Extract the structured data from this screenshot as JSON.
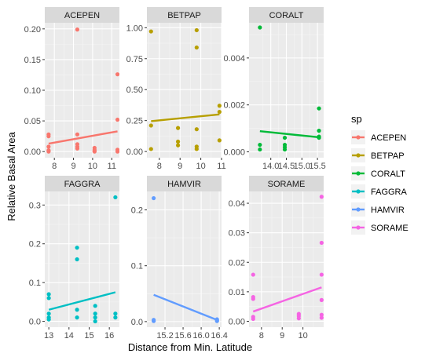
{
  "chart_data": {
    "type": "scatter",
    "xlabel": "Distance from Min. Latitude",
    "ylabel": "Relative Basal Area",
    "legend": {
      "title": "sp",
      "placement": "right",
      "entries": [
        {
          "name": "ACEPEN",
          "color": "#F8766D"
        },
        {
          "name": "BETPAP",
          "color": "#B79F00"
        },
        {
          "name": "CORALT",
          "color": "#00BA38"
        },
        {
          "name": "FAGGRA",
          "color": "#00BFC4"
        },
        {
          "name": "HAMVIR",
          "color": "#619CFF"
        },
        {
          "name": "SORAME",
          "color": "#F564E3"
        }
      ]
    },
    "panels": [
      {
        "label": "ACEPEN",
        "color": "#F8766D",
        "xlim": [
          7.5,
          11.4
        ],
        "ylim": [
          -0.01,
          0.21
        ],
        "xticks": [
          8,
          9,
          10,
          11
        ],
        "xticklabels": [
          "8",
          "9",
          "10",
          "11"
        ],
        "yticks": [
          0,
          0.05,
          0.1,
          0.15,
          0.2
        ],
        "yticklabels": [
          "0.00",
          "0.05",
          "0.10",
          "0.15",
          "0.20"
        ],
        "points": [
          [
            7.7,
            0.028
          ],
          [
            7.7,
            0.025
          ],
          [
            7.7,
            0.008
          ],
          [
            7.7,
            0.002
          ],
          [
            7.7,
            0.0
          ],
          [
            9.2,
            0.199
          ],
          [
            9.2,
            0.028
          ],
          [
            9.2,
            0.012
          ],
          [
            9.2,
            0.008
          ],
          [
            9.2,
            0.005
          ],
          [
            10.1,
            0.006
          ],
          [
            10.1,
            0.003
          ],
          [
            10.1,
            0.001
          ],
          [
            10.1,
            0.0
          ],
          [
            11.3,
            0.126
          ],
          [
            11.3,
            0.052
          ],
          [
            11.3,
            0.003
          ],
          [
            11.3,
            0.0
          ]
        ],
        "line": [
          [
            7.7,
            0.013
          ],
          [
            11.3,
            0.033
          ]
        ]
      },
      {
        "label": "BETPAP",
        "color": "#B79F00",
        "xlim": [
          7.4,
          11.0
        ],
        "ylim": [
          -0.05,
          1.04
        ],
        "xticks": [
          8,
          9,
          10,
          11
        ],
        "xticklabels": [
          "8",
          "9",
          "10",
          "11"
        ],
        "yticks": [
          0,
          0.25,
          0.5,
          0.75,
          1.0
        ],
        "yticklabels": [
          "0.00",
          "0.25",
          "0.50",
          "0.75",
          "1.00"
        ],
        "points": [
          [
            7.6,
            0.97
          ],
          [
            7.6,
            0.21
          ],
          [
            7.6,
            0.02
          ],
          [
            8.9,
            0.19
          ],
          [
            8.9,
            0.08
          ],
          [
            8.9,
            0.05
          ],
          [
            9.8,
            0.98
          ],
          [
            9.8,
            0.84
          ],
          [
            9.8,
            0.18
          ],
          [
            9.8,
            0.04
          ],
          [
            9.8,
            0.02
          ],
          [
            10.9,
            0.37
          ],
          [
            10.9,
            0.32
          ],
          [
            10.9,
            0.09
          ]
        ],
        "line": [
          [
            7.6,
            0.245
          ],
          [
            10.9,
            0.3
          ]
        ]
      },
      {
        "label": "CORALT",
        "color": "#00BA38",
        "xlim": [
          13.3,
          15.7
        ],
        "ylim": [
          -0.00025,
          0.0055
        ],
        "xticks": [
          14.0,
          14.5,
          15.0,
          15.5
        ],
        "xticklabels": [
          "14.0",
          "14.5",
          "15.0",
          "15.5"
        ],
        "yticks": [
          0,
          0.002,
          0.004
        ],
        "yticklabels": [
          "0.000",
          "0.002",
          "0.004"
        ],
        "points": [
          [
            13.65,
            0.0053
          ],
          [
            13.65,
            0.0003
          ],
          [
            13.65,
            0.0001
          ],
          [
            14.45,
            0.0006
          ],
          [
            14.45,
            0.0003
          ],
          [
            14.45,
            0.0002
          ],
          [
            14.45,
            0.0001
          ],
          [
            15.55,
            0.00185
          ],
          [
            15.55,
            0.0009
          ],
          [
            15.55,
            0.00065
          ],
          [
            15.55,
            0.0006
          ]
        ],
        "line": [
          [
            13.65,
            0.00088
          ],
          [
            15.55,
            0.00062
          ]
        ]
      },
      {
        "label": "FAGGRA",
        "color": "#00BFC4",
        "xlim": [
          12.8,
          16.5
        ],
        "ylim": [
          -0.015,
          0.335
        ],
        "xticks": [
          13,
          14,
          15,
          16
        ],
        "xticklabels": [
          "13",
          "14",
          "15",
          "16"
        ],
        "yticks": [
          0,
          0.1,
          0.2,
          0.3
        ],
        "yticklabels": [
          "0.0",
          "0.1",
          "0.2",
          "0.3"
        ],
        "points": [
          [
            13.0,
            0.07
          ],
          [
            13.0,
            0.06
          ],
          [
            13.0,
            0.02
          ],
          [
            13.0,
            0.01
          ],
          [
            13.0,
            0.005
          ],
          [
            14.4,
            0.19
          ],
          [
            14.4,
            0.16
          ],
          [
            14.4,
            0.03
          ],
          [
            14.4,
            0.01
          ],
          [
            15.3,
            0.04
          ],
          [
            15.3,
            0.02
          ],
          [
            15.3,
            0.01
          ],
          [
            15.3,
            0.0
          ],
          [
            16.3,
            0.32
          ],
          [
            16.3,
            0.02
          ],
          [
            16.3,
            0.01
          ]
        ],
        "line": [
          [
            13.0,
            0.03
          ],
          [
            16.3,
            0.075
          ]
        ]
      },
      {
        "label": "HAMVIR",
        "color": "#619CFF",
        "xlim": [
          14.8,
          16.45
        ],
        "ylim": [
          -0.01,
          0.233
        ],
        "xticks": [
          15.2,
          15.6,
          16.0,
          16.4
        ],
        "xticklabels": [
          "15.2",
          "15.6",
          "16.0",
          "16.4"
        ],
        "yticks": [
          0,
          0.1,
          0.2
        ],
        "yticklabels": [
          "0.0",
          "0.1",
          "0.2"
        ],
        "points": [
          [
            14.95,
            0.221
          ],
          [
            14.95,
            0.003
          ],
          [
            14.95,
            0.001
          ],
          [
            16.35,
            0.004
          ],
          [
            16.35,
            0.002
          ],
          [
            16.35,
            0.001
          ]
        ],
        "line": [
          [
            14.95,
            0.048
          ],
          [
            16.35,
            0.003
          ]
        ]
      },
      {
        "label": "SORAME",
        "color": "#F564E3",
        "xlim": [
          7.4,
          11.0
        ],
        "ylim": [
          -0.002,
          0.044
        ],
        "xticks": [
          8,
          9,
          10
        ],
        "xticklabels": [
          "8",
          "9",
          "10"
        ],
        "yticks": [
          0,
          0.01,
          0.02,
          0.03,
          0.04
        ],
        "yticklabels": [
          "0.00",
          "0.01",
          "0.02",
          "0.03",
          "0.04"
        ],
        "points": [
          [
            7.6,
            0.0158
          ],
          [
            7.6,
            0.0082
          ],
          [
            7.6,
            0.0076
          ],
          [
            7.6,
            0.0015
          ],
          [
            7.6,
            0.0008
          ],
          [
            9.8,
            0.0025
          ],
          [
            9.8,
            0.0018
          ],
          [
            9.8,
            0.001
          ],
          [
            10.9,
            0.0422
          ],
          [
            10.9,
            0.0266
          ],
          [
            10.9,
            0.0158
          ],
          [
            10.9,
            0.0072
          ],
          [
            10.9,
            0.0022
          ],
          [
            10.9,
            0.0012
          ]
        ],
        "line": [
          [
            7.6,
            0.0033
          ],
          [
            10.9,
            0.0115
          ]
        ]
      }
    ]
  }
}
